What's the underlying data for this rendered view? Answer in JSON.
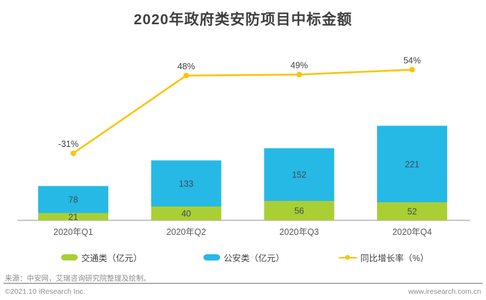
{
  "page": {
    "title": "2020年政府类安防项目中标金额"
  },
  "chart_data": {
    "type": "bar",
    "subtype": "stacked-bars-with-line-overlay",
    "title": "2020年政府类安防项目中标金额",
    "categories": [
      "2020年Q1",
      "2020年Q2",
      "2020年Q3",
      "2020年Q4"
    ],
    "series": [
      {
        "name": "交通类（亿元）",
        "type": "bar",
        "color": "#a9cf35",
        "values": [
          21,
          40,
          56,
          52
        ]
      },
      {
        "name": "公安类（亿元）",
        "type": "bar",
        "color": "#26b9e5",
        "values": [
          78,
          133,
          152,
          221
        ]
      },
      {
        "name": "同比增长率（%）",
        "type": "line",
        "color": "#fcc306",
        "values": [
          -31,
          48,
          49,
          54
        ],
        "point_labels": [
          "-31%",
          "48%",
          "49%",
          "54%"
        ]
      }
    ],
    "stacked": true,
    "value_labels_shown": true,
    "y_axis_visible": false,
    "grid": false,
    "legend_position": "bottom",
    "label_color": "#3f4a52",
    "pct_label_color": "#404040",
    "axis_label_color": "#595959",
    "axis_line_color": "#a3a3a3"
  },
  "legend": {
    "items": [
      {
        "label": "交通类（亿元）",
        "marker": "swatch",
        "color": "#a9cf35"
      },
      {
        "label": "公安类（亿元）",
        "marker": "swatch",
        "color": "#26b9e5"
      },
      {
        "label": "同比增长率（%）",
        "marker": "line-dot",
        "color": "#fcc306"
      }
    ]
  },
  "footer": {
    "source": "来源：中安网，艾瑞咨询研究院整理及绘制。",
    "copyright": "©2021.10 iResearch Inc.",
    "website": "www.iresearch.com.cn"
  }
}
